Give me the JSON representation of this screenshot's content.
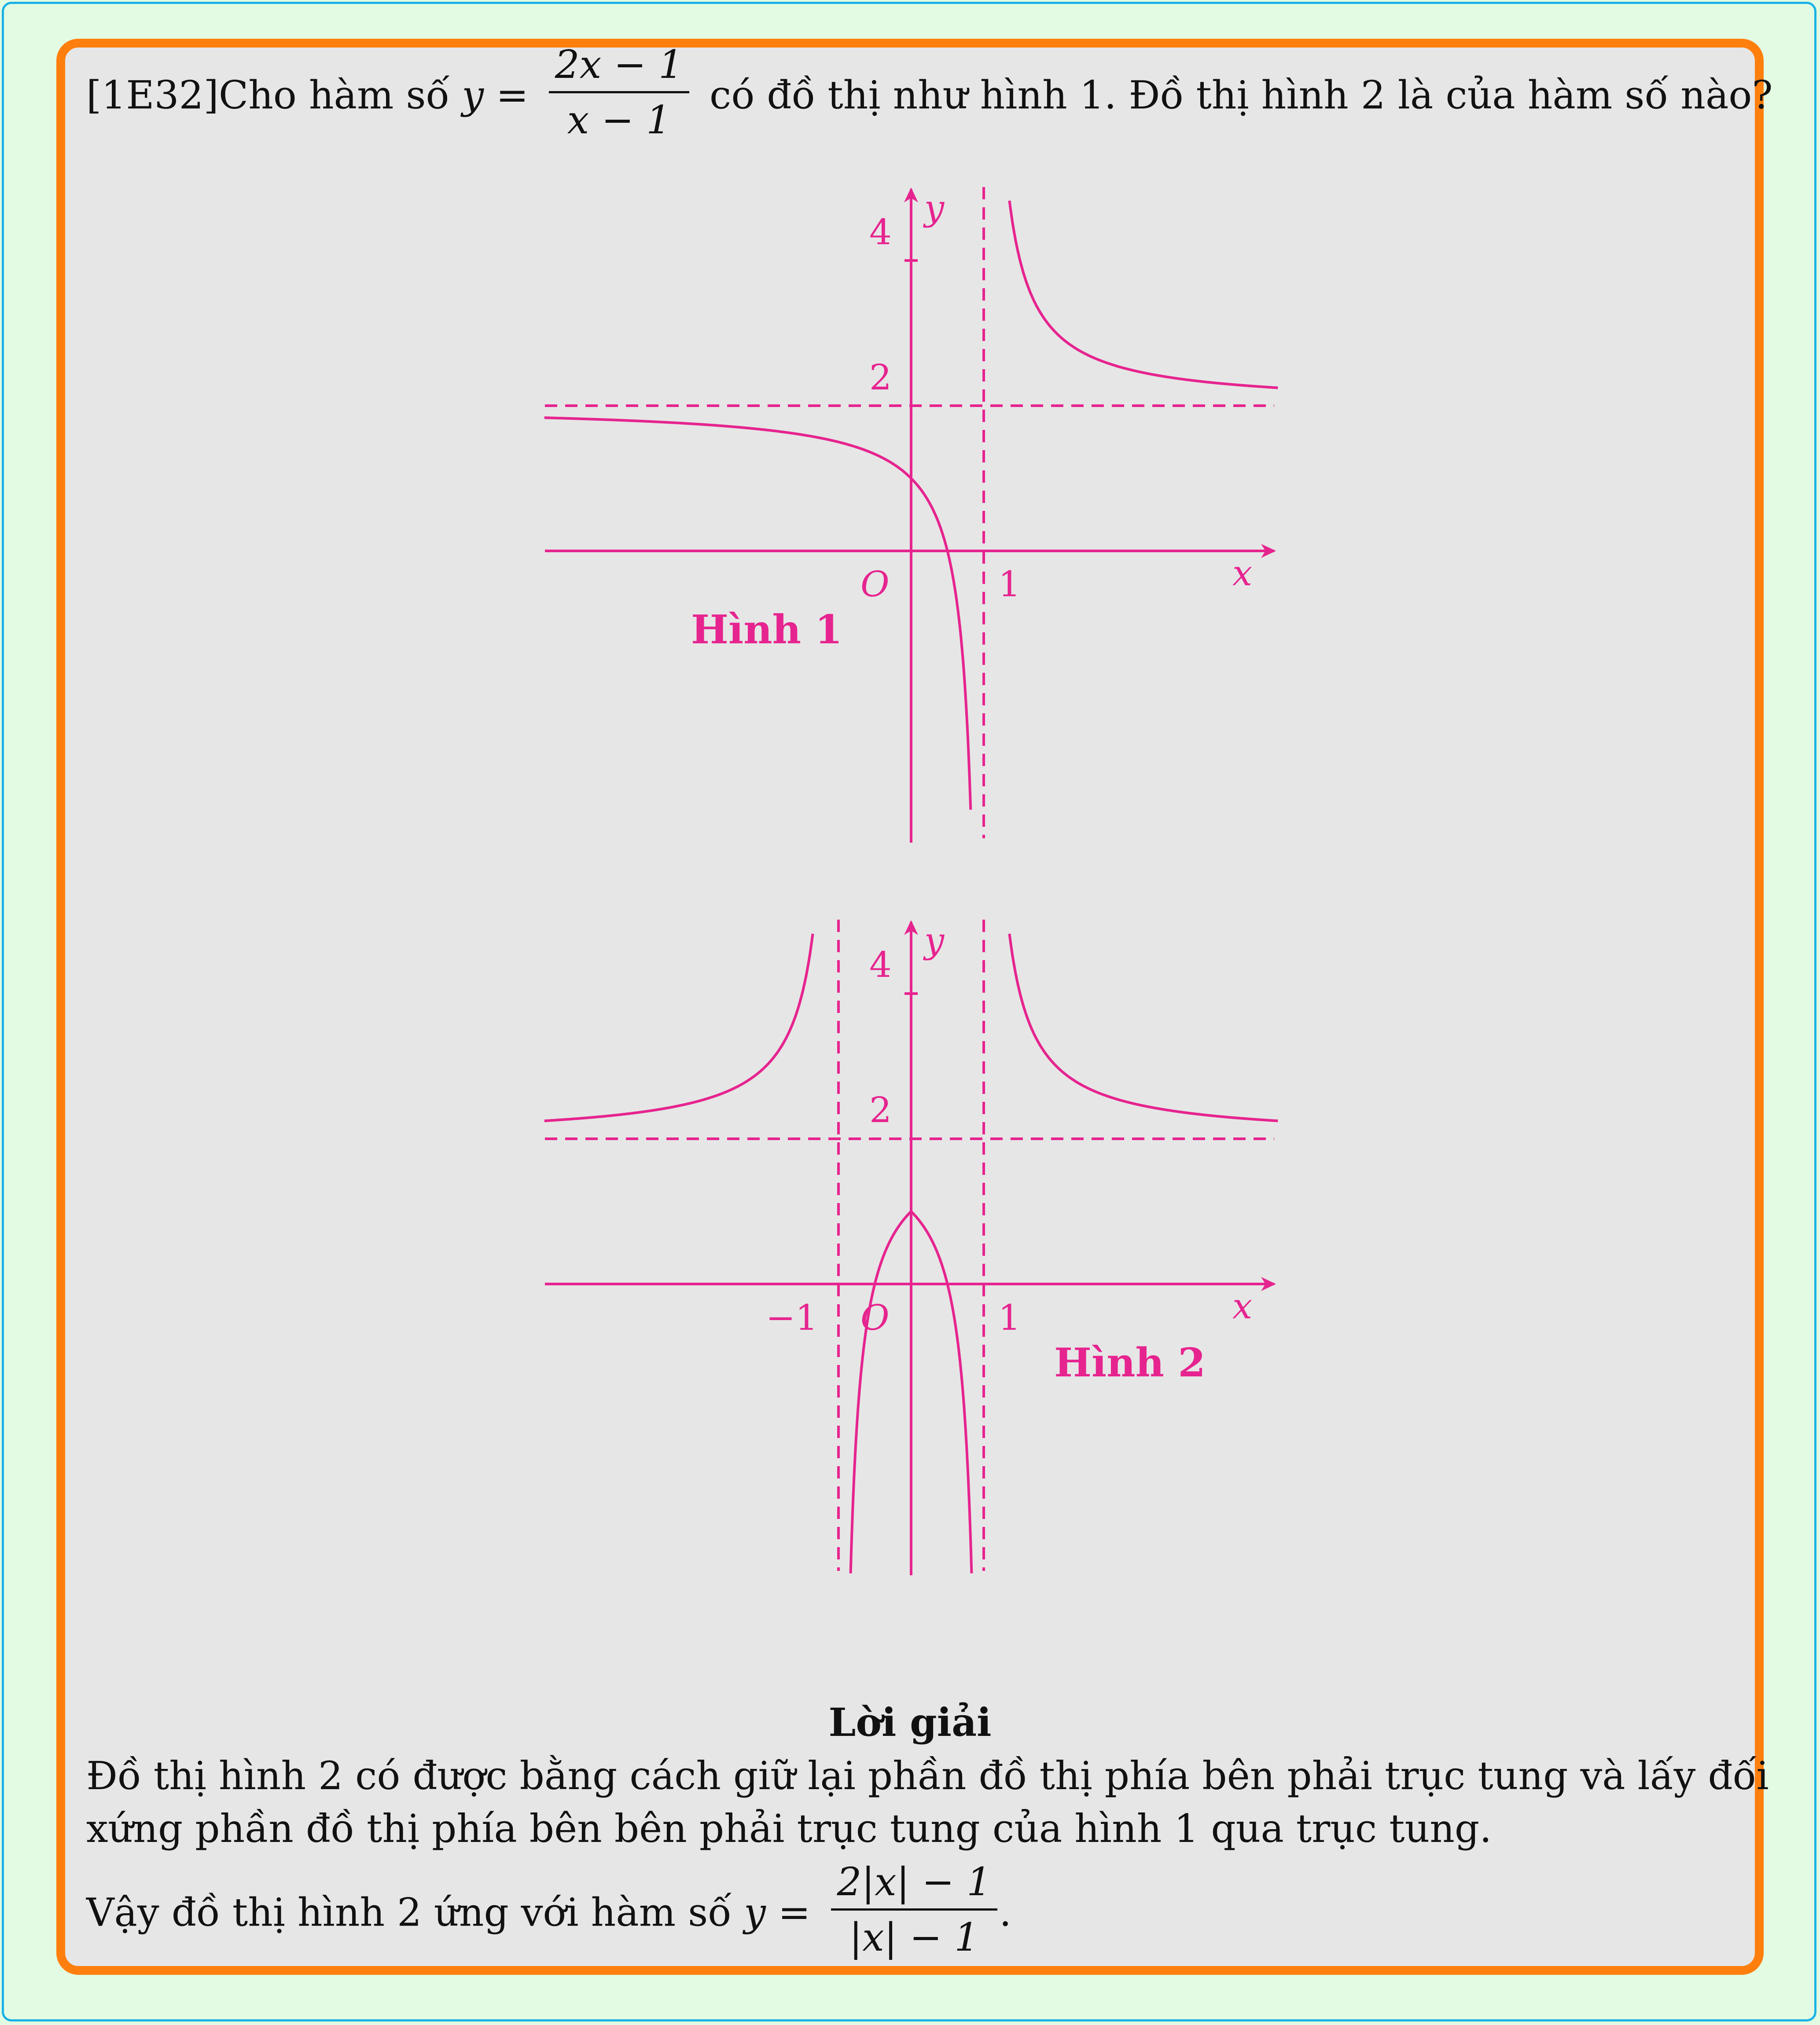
{
  "problem": {
    "prefix": "[1E32]Cho hàm số ",
    "y_var": "y",
    "equals": " = ",
    "frac_num": "2x − 1",
    "frac_den": "x − 1",
    "suffix": " có đồ thị như hình 1. Đồ thị hình 2 là của hàm số nào?"
  },
  "figure1": {
    "caption": "Hình 1",
    "x_label": "x",
    "y_label": "y",
    "origin_label": "O",
    "ticks": {
      "x_one": "1",
      "y_two": "2",
      "y_four": "4"
    }
  },
  "figure2": {
    "caption": "Hình 2",
    "x_label": "x",
    "y_label": "y",
    "origin_label": "O",
    "ticks": {
      "x_one": "1",
      "x_minus_one": "−1",
      "y_two": "2",
      "y_four": "4"
    }
  },
  "solution": {
    "title": "Lời giải",
    "line1": "Đồ thị hình 2 có được bằng cách giữ lại phần đồ thị phía bên phải trục tung và lấy đối",
    "line2": "xứng phần đồ thị phía bên bên phải trục tung của hình 1 qua trục tung.",
    "line3_prefix": "Vậy đồ thị hình 2 ứng với hàm số ",
    "y_var": "y",
    "equals": " = ",
    "frac_num": "2|x| − 1",
    "frac_den": "|x| − 1",
    "line3_suffix": "."
  },
  "colors": {
    "curve": "#e6248f",
    "frame_orange": "#ff7f0e",
    "frame_blue": "#1ab2e6",
    "card_bg": "#e6e6e6",
    "page_bg": "#e2fbe2"
  }
}
